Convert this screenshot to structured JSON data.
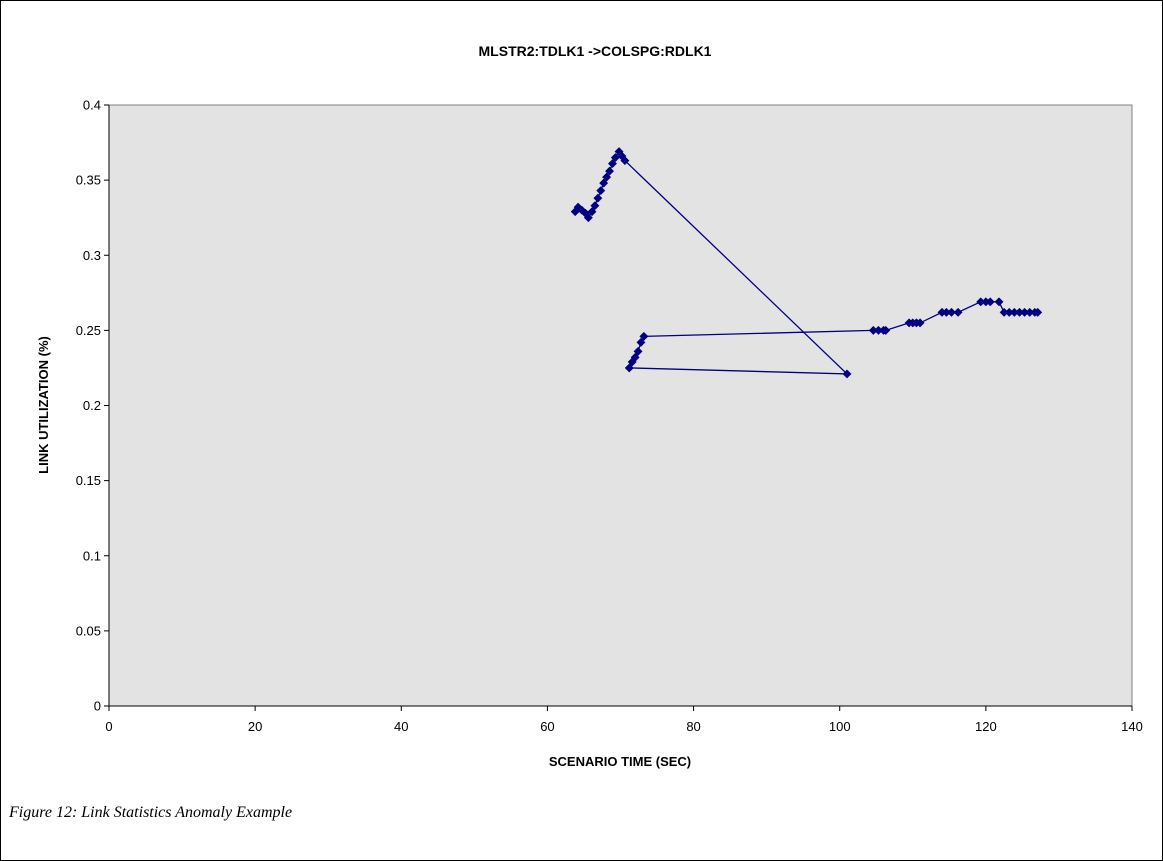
{
  "caption": "Figure 12:  Link Statistics Anomaly Example",
  "chart_data": {
    "type": "line",
    "title": "MLSTR2:TDLK1 ->COLSPG:RDLK1",
    "xlabel": "SCENARIO TIME (SEC)",
    "ylabel": "LINK UTILIZATION (%)",
    "xlim": [
      0,
      140
    ],
    "ylim": [
      0,
      0.4
    ],
    "x_ticks": [
      "0",
      "20",
      "40",
      "60",
      "80",
      "100",
      "120",
      "140"
    ],
    "y_ticks": [
      "0",
      "0.05",
      "0.1",
      "0.15",
      "0.2",
      "0.25",
      "0.3",
      "0.35",
      "0.4"
    ],
    "grid": false,
    "plot_background": "#e3e3e3",
    "series_color": "#000080",
    "marker": "diamond",
    "series": [
      {
        "x": [
          63.8,
          64.2,
          64.7,
          65.2,
          65.6,
          66.1,
          66.5,
          66.9,
          67.3,
          67.7,
          68.1,
          68.5,
          68.9,
          69.3,
          69.8,
          70.2,
          70.6,
          101.0,
          71.2,
          71.6,
          72.0,
          72.4,
          72.8,
          73.2,
          104.6,
          105.3,
          106.0,
          106.3,
          109.5,
          110.0,
          110.5,
          111.0,
          114.0,
          114.6,
          115.3,
          116.2,
          119.3,
          120.0,
          120.6,
          121.8,
          122.5,
          123.2,
          123.9,
          124.6,
          125.3,
          126.0,
          126.7,
          127.1
        ],
        "y": [
          0.329,
          0.332,
          0.33,
          0.328,
          0.325,
          0.329,
          0.333,
          0.338,
          0.343,
          0.348,
          0.352,
          0.356,
          0.361,
          0.365,
          0.369,
          0.366,
          0.363,
          0.221,
          0.225,
          0.229,
          0.232,
          0.236,
          0.242,
          0.246,
          0.25,
          0.25,
          0.25,
          0.25,
          0.255,
          0.255,
          0.255,
          0.255,
          0.262,
          0.262,
          0.262,
          0.262,
          0.269,
          0.269,
          0.269,
          0.269,
          0.262,
          0.262,
          0.262,
          0.262,
          0.262,
          0.262,
          0.262,
          0.262
        ]
      }
    ]
  }
}
